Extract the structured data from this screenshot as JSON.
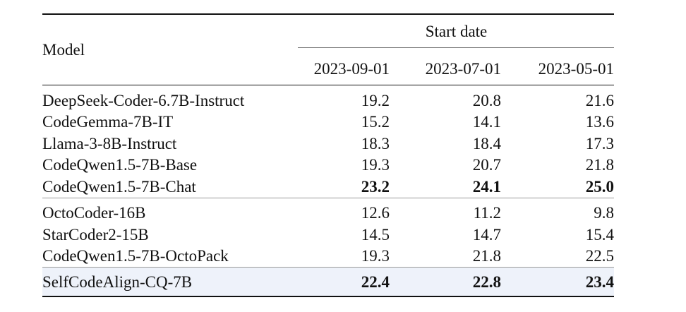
{
  "header": {
    "model_label": "Model",
    "group_label": "Start date",
    "dates": [
      "2023-09-01",
      "2023-07-01",
      "2023-05-01"
    ]
  },
  "groups": [
    {
      "rows": [
        {
          "model": "DeepSeek-Coder-6.7B-Instruct",
          "values": [
            "19.2",
            "20.8",
            "21.6"
          ],
          "bold": [
            false,
            false,
            false
          ]
        },
        {
          "model": "CodeGemma-7B-IT",
          "values": [
            "15.2",
            "14.1",
            "13.6"
          ],
          "bold": [
            false,
            false,
            false
          ]
        },
        {
          "model": "Llama-3-8B-Instruct",
          "values": [
            "18.3",
            "18.4",
            "17.3"
          ],
          "bold": [
            false,
            false,
            false
          ]
        },
        {
          "model": "CodeQwen1.5-7B-Base",
          "values": [
            "19.3",
            "20.7",
            "21.8"
          ],
          "bold": [
            false,
            false,
            false
          ]
        },
        {
          "model": "CodeQwen1.5-7B-Chat",
          "values": [
            "23.2",
            "24.1",
            "25.0"
          ],
          "bold": [
            true,
            true,
            true
          ]
        }
      ]
    },
    {
      "rows": [
        {
          "model": "OctoCoder-16B",
          "values": [
            "12.6",
            "11.2",
            "9.8"
          ],
          "bold": [
            false,
            false,
            false
          ]
        },
        {
          "model": "StarCoder2-15B",
          "values": [
            "14.5",
            "14.7",
            "15.4"
          ],
          "bold": [
            false,
            false,
            false
          ]
        },
        {
          "model": "CodeQwen1.5-7B-OctoPack",
          "values": [
            "19.3",
            "21.8",
            "22.5"
          ],
          "bold": [
            false,
            false,
            false
          ]
        }
      ]
    },
    {
      "highlight": true,
      "rows": [
        {
          "model": "SelfCodeAlign-CQ-7B",
          "values": [
            "22.4",
            "22.8",
            "23.4"
          ],
          "bold": [
            true,
            true,
            true
          ]
        }
      ]
    }
  ],
  "colors": {
    "highlight_background": "#eef2fa",
    "rule": "#111111"
  }
}
